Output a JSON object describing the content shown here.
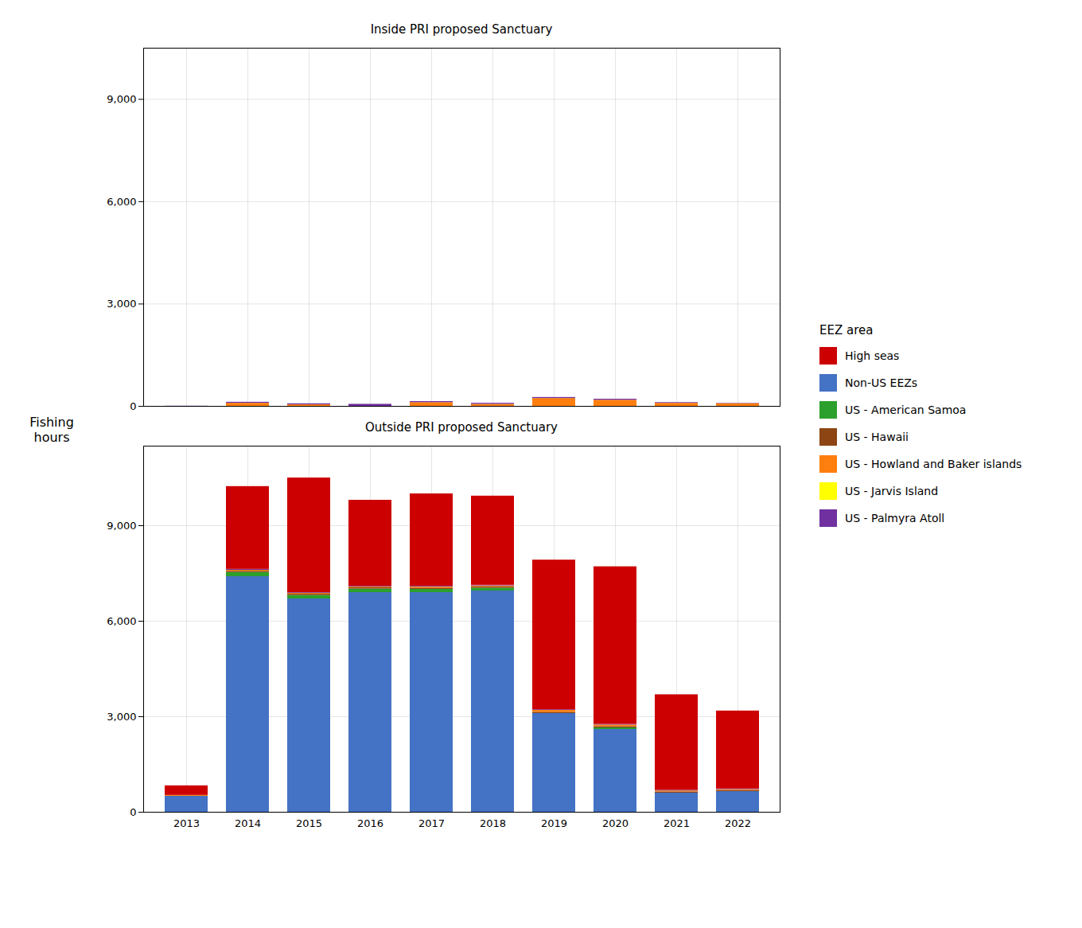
{
  "chart_data": [
    {
      "type": "bar",
      "title": "Inside PRI proposed Sanctuary",
      "ylabel": "Fishing\nhours",
      "stacked": true,
      "grid": true,
      "tick_labels": "y",
      "legend": "right",
      "legend_title": "EEZ area",
      "legend_order": [
        "High seas",
        "Non-US EEZs",
        "US - American Samoa",
        "US - Hawaii",
        "US - Howland and Baker islands",
        "US - Jarvis Island",
        "US - Palmyra Atoll"
      ],
      "categories": [
        "2013",
        "2014",
        "2015",
        "2016",
        "2017",
        "2018",
        "2019",
        "2020",
        "2021",
        "2022"
      ],
      "series": [
        {
          "name": "Non-US EEZs",
          "color": "#4472c4",
          "values": [
            0,
            0,
            0,
            0,
            0,
            0,
            0,
            0,
            0,
            0
          ]
        },
        {
          "name": "US - American Samoa",
          "color": "#2ca02c",
          "values": [
            0,
            0,
            0,
            0,
            0,
            0,
            0,
            0,
            0,
            0
          ]
        },
        {
          "name": "US - Hawaii",
          "color": "#8c4513",
          "values": [
            0,
            0,
            0,
            0,
            0,
            0,
            0,
            0,
            0,
            0
          ]
        },
        {
          "name": "US - Howland and Baker islands",
          "color": "#ff7f0e",
          "values": [
            0,
            90,
            45,
            0,
            110,
            60,
            230,
            180,
            90,
            80
          ]
        },
        {
          "name": "US - Jarvis Island",
          "color": "#ffff00",
          "values": [
            0,
            0,
            0,
            0,
            0,
            0,
            0,
            0,
            0,
            0
          ]
        },
        {
          "name": "US - Palmyra Atoll",
          "color": "#7030a0",
          "values": [
            5,
            30,
            30,
            60,
            30,
            30,
            30,
            30,
            20,
            10
          ]
        },
        {
          "name": "High seas",
          "color": "#cc0000",
          "values": [
            0,
            0,
            0,
            0,
            0,
            0,
            0,
            0,
            0,
            0
          ]
        }
      ],
      "ylim": [
        0,
        10500
      ],
      "yticks": [
        0,
        {
          "value": 3000,
          "label": "3,000"
        },
        {
          "value": 6000,
          "label": "6,000"
        },
        {
          "value": 9000,
          "label": "9,000"
        }
      ]
    },
    {
      "type": "bar",
      "title": "Outside PRI proposed Sanctuary",
      "stacked": true,
      "grid": true,
      "categories": [
        "2013",
        "2014",
        "2015",
        "2016",
        "2017",
        "2018",
        "2019",
        "2020",
        "2021",
        "2022"
      ],
      "series": [
        {
          "name": "Non-US EEZs",
          "color": "#4472c4",
          "values": [
            500,
            7400,
            6700,
            6900,
            6900,
            6950,
            3100,
            2600,
            600,
            650
          ]
        },
        {
          "name": "US - American Samoa",
          "color": "#2ca02c",
          "values": [
            0,
            130,
            110,
            110,
            100,
            90,
            0,
            50,
            0,
            0
          ]
        },
        {
          "name": "US - Hawaii",
          "color": "#8c4513",
          "values": [
            0,
            40,
            40,
            40,
            40,
            40,
            40,
            40,
            40,
            30
          ]
        },
        {
          "name": "US - Howland and Baker islands",
          "color": "#ff7f0e",
          "values": [
            30,
            30,
            30,
            30,
            40,
            30,
            60,
            50,
            30,
            30
          ]
        },
        {
          "name": "US - Jarvis Island",
          "color": "#ffff00",
          "values": [
            0,
            0,
            0,
            0,
            0,
            0,
            0,
            0,
            0,
            0
          ]
        },
        {
          "name": "US - Palmyra Atoll",
          "color": "#7030a0",
          "values": [
            0,
            30,
            20,
            20,
            20,
            20,
            20,
            20,
            20,
            20
          ]
        },
        {
          "name": "High seas",
          "color": "#cc0000",
          "values": [
            300,
            2600,
            3600,
            2700,
            2900,
            2800,
            4700,
            4950,
            3000,
            2450
          ]
        }
      ],
      "ylim": [
        0,
        11500
      ],
      "yticks": [
        0,
        {
          "value": 3000,
          "label": "3,000"
        },
        {
          "value": 6000,
          "label": "6,000"
        },
        {
          "value": 9000,
          "label": "9,000"
        }
      ]
    }
  ]
}
